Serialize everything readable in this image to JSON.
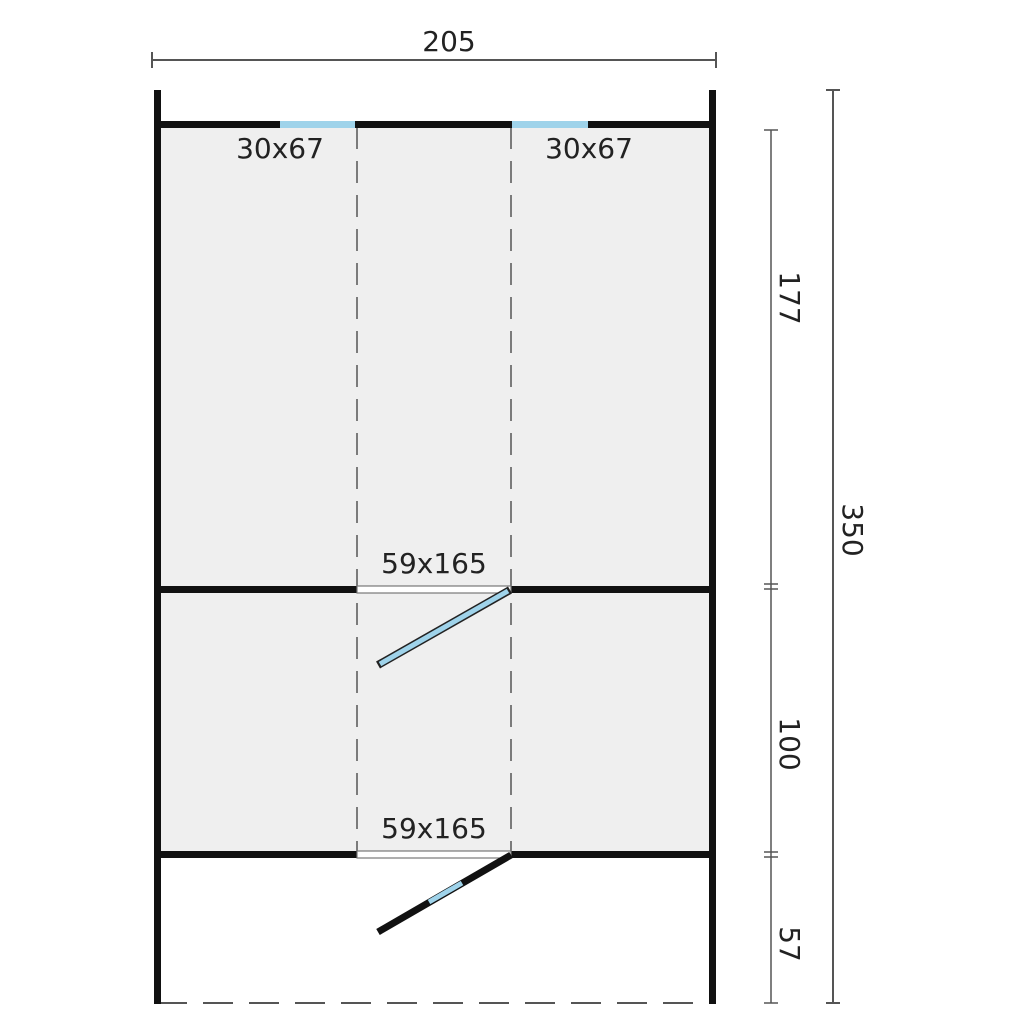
{
  "dimensions": {
    "total_width": "205",
    "total_depth": "350",
    "room1_depth": "177",
    "room2_depth": "100",
    "porch_depth": "57"
  },
  "windows": [
    {
      "label": "30x67"
    },
    {
      "label": "30x67"
    }
  ],
  "doors": [
    {
      "label": "59x165"
    },
    {
      "label": "59x165"
    }
  ],
  "colors": {
    "wall": "#111111",
    "glass": "#9fd3ea",
    "floor": "#efefef",
    "dimension": "#555555"
  }
}
